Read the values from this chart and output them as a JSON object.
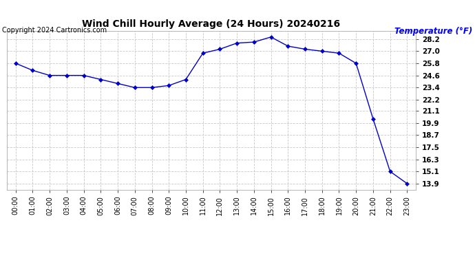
{
  "title": "Wind Chill Hourly Average (24 Hours) 20240216",
  "copyright": "Copyright 2024 Cartronics.com",
  "ylabel": "Temperature (°F)",
  "hours": [
    "00:00",
    "01:00",
    "02:00",
    "03:00",
    "04:00",
    "05:00",
    "06:00",
    "07:00",
    "08:00",
    "09:00",
    "10:00",
    "11:00",
    "12:00",
    "13:00",
    "14:00",
    "15:00",
    "16:00",
    "17:00",
    "18:00",
    "19:00",
    "20:00",
    "21:00",
    "22:00",
    "23:00"
  ],
  "values": [
    25.8,
    25.1,
    24.6,
    24.6,
    24.6,
    24.2,
    23.8,
    23.4,
    23.4,
    23.6,
    24.2,
    26.8,
    27.2,
    27.8,
    27.9,
    28.4,
    27.5,
    27.2,
    27.0,
    26.8,
    25.8,
    20.3,
    15.1,
    13.9
  ],
  "line_color": "#0000cc",
  "marker_color": "#000080",
  "grid_color": "#c8c8c8",
  "bg_color": "#ffffff",
  "title_color": "#000000",
  "copyright_color": "#000000",
  "ylabel_color": "#0000ff",
  "yticks": [
    13.9,
    15.1,
    16.3,
    17.5,
    18.7,
    19.9,
    21.1,
    22.2,
    23.4,
    24.6,
    25.8,
    27.0,
    28.2
  ],
  "ylim_min": 13.3,
  "ylim_max": 29.0
}
